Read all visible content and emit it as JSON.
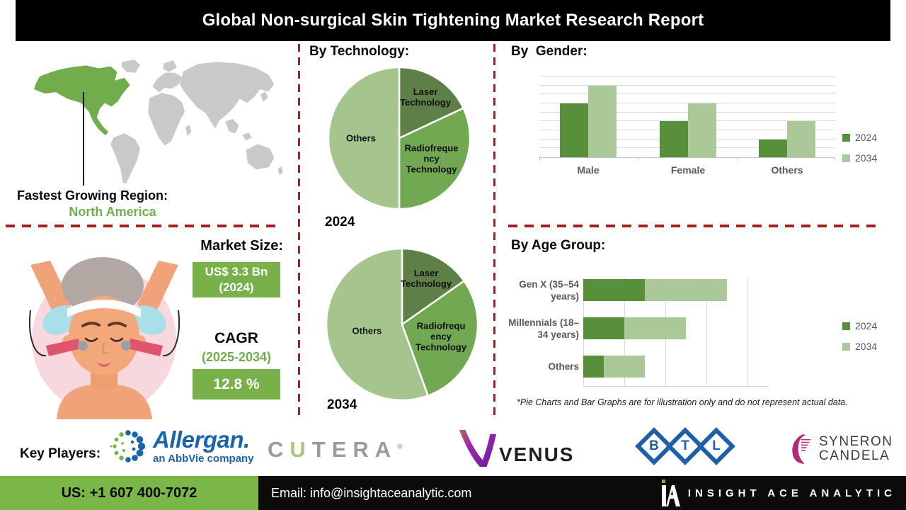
{
  "header": {
    "title": "Global Non-surgical Skin Tightening Market Research Report"
  },
  "map": {
    "label": "Fastest Growing Region:",
    "value": "North America",
    "highlight_color": "#72ad4c",
    "base_color": "#c9c9c9"
  },
  "market": {
    "size_heading": "Market Size:",
    "size_value": "US$ 3.3 Bn (2024)",
    "cagr_heading": "CAGR",
    "cagr_period": "(2025-2034)",
    "cagr_value": "12.8 %"
  },
  "chart_data": [
    {
      "id": "technology-2024",
      "type": "pie",
      "title": "By Technology:",
      "year": "2024",
      "slices": [
        {
          "label": "Laser Technology",
          "label_lines": [
            "Laser",
            "Technology"
          ],
          "pct": 18,
          "start": 0,
          "end": 65,
          "color": "#5e8046"
        },
        {
          "label": "Radiofrequency Technology",
          "label_lines": [
            "Radiofreque",
            "ncy",
            "Technology"
          ],
          "pct": 32,
          "start": 65,
          "end": 180,
          "color": "#71a851"
        },
        {
          "label": "Others",
          "label_lines": [
            "Others"
          ],
          "pct": 50,
          "start": 180,
          "end": 360,
          "color": "#a6c58d"
        }
      ]
    },
    {
      "id": "technology-2034",
      "type": "pie",
      "title": "By Technology:",
      "year": "2034",
      "slices": [
        {
          "label": "Laser Technology",
          "label_lines": [
            "Laser",
            "Technology"
          ],
          "pct": 15,
          "start": 0,
          "end": 55,
          "color": "#5e8046"
        },
        {
          "label": "Radiofrequency Technology",
          "label_lines": [
            "Radiofrequ",
            "ency",
            "Technology"
          ],
          "pct": 29,
          "start": 55,
          "end": 160,
          "color": "#71a851"
        },
        {
          "label": "Others",
          "label_lines": [
            "Others"
          ],
          "pct": 56,
          "start": 160,
          "end": 360,
          "color": "#a6c58d"
        }
      ]
    },
    {
      "id": "gender",
      "type": "bar",
      "title": "By  Gender:",
      "categories": [
        "Male",
        "Female",
        "Others"
      ],
      "series": [
        {
          "name": "2024",
          "color": "#588f3b",
          "values": [
            6,
            4,
            2
          ]
        },
        {
          "name": "2034",
          "color": "#aac898",
          "values": [
            8,
            6,
            4
          ]
        }
      ],
      "ylim": [
        0,
        9
      ],
      "grid": true,
      "legend_position": "right"
    },
    {
      "id": "age",
      "type": "stacked-bar-horizontal",
      "title": "By Age Group:",
      "categories": [
        "Gen X (35–54 years)",
        "Millennials (18–34 years)",
        "Others"
      ],
      "category_lines": [
        [
          "Gen X (35–54",
          "years)"
        ],
        [
          "Millennials (18–",
          "34 years)"
        ],
        [
          "Others"
        ]
      ],
      "series": [
        {
          "name": "2024",
          "color": "#588f3b",
          "values": [
            1.5,
            1.0,
            0.5
          ]
        },
        {
          "name": "2034",
          "color": "#aac898",
          "values": [
            2.0,
            1.5,
            1.0
          ]
        }
      ],
      "xlim": [
        0,
        4.5
      ],
      "grid": true,
      "legend_position": "right"
    }
  ],
  "disclaimer": "*Pie Charts and Bar Graphs are for illustration only and do not represent actual data.",
  "key_players": {
    "label": "Key Players:",
    "companies": [
      {
        "name": "Allergan.",
        "tagline": "an AbbVie company"
      },
      {
        "name": "CUTERA",
        "mark": "®"
      },
      {
        "name": "VENUS"
      },
      {
        "name": "BTL",
        "letters": [
          "B",
          "T",
          "L"
        ]
      },
      {
        "name": "SYNERON CANDELA",
        "line1": "SYNERON",
        "line2": "CANDELA"
      }
    ]
  },
  "footer": {
    "phone": "US: +1 607 400-7072",
    "email": "Email: info@insightaceanalytic.com",
    "brand": "INSIGHT ACE ANALYTIC"
  }
}
